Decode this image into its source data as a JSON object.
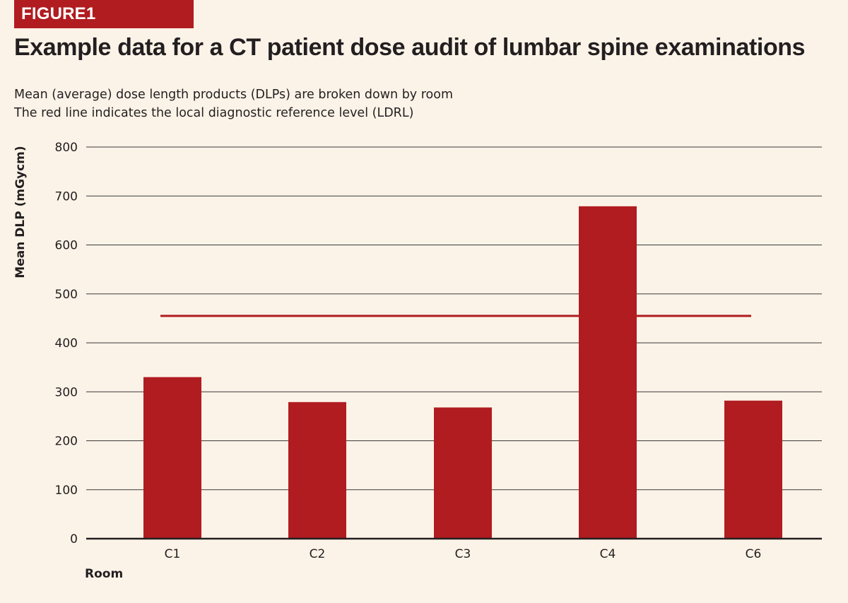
{
  "figure_label": "FIGURE1",
  "chart_data": {
    "type": "bar",
    "title": "Example data for a CT patient dose audit of lumbar spine examinations",
    "subtitle": [
      "Mean (average) dose length products (DLPs) are broken down by room",
      "The red line indicates the local diagnostic reference level (LDRL)"
    ],
    "xlabel": "Room",
    "ylabel": "Mean DLP (mGycm)",
    "categories": [
      "C1",
      "C2",
      "C3",
      "C4",
      "C6"
    ],
    "values": [
      330,
      279,
      268,
      679,
      282
    ],
    "ylim": [
      0,
      800
    ],
    "yticks": [
      0,
      100,
      200,
      300,
      400,
      500,
      600,
      700,
      800
    ],
    "reference_line": {
      "value": 455,
      "from_category": "C1",
      "to_category": "C6"
    },
    "grid": true,
    "colors": {
      "bar": "#b01c20",
      "reference_line": "#b01c20",
      "grid": "#3a3a3a",
      "background": "#fcf3e8"
    }
  }
}
